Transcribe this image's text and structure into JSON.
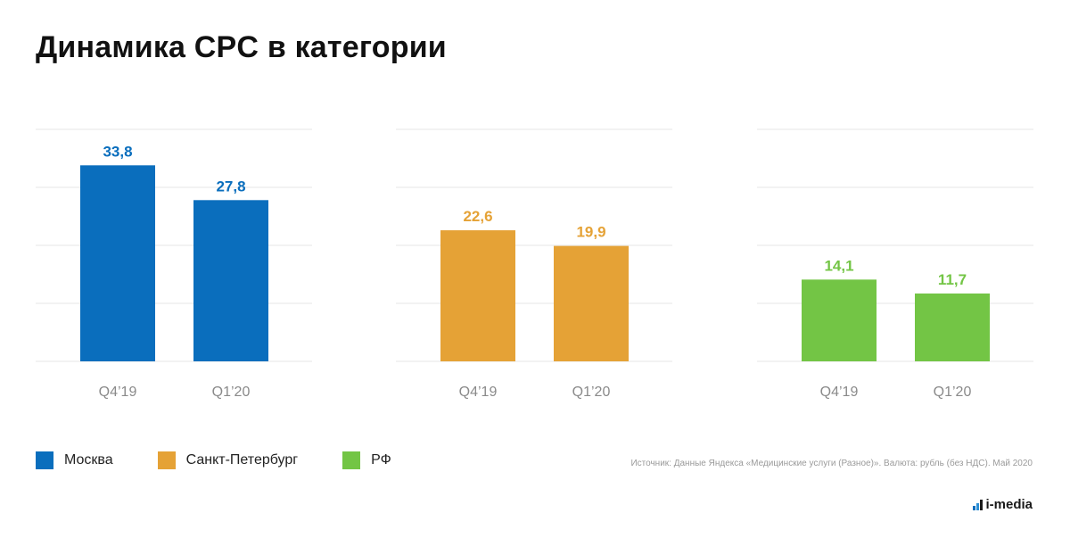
{
  "title": "Динамика CPC в категории",
  "chart_data": [
    {
      "type": "bar",
      "name": "Москва",
      "categories": [
        "Q4’19",
        "Q1’20"
      ],
      "values": [
        33.8,
        27.8
      ],
      "value_labels": [
        "33,8",
        "27,8"
      ],
      "color": "#0a6ebd",
      "ylim": [
        0,
        40
      ],
      "grid": true
    },
    {
      "type": "bar",
      "name": "Санкт-Петербург",
      "categories": [
        "Q4’19",
        "Q1’20"
      ],
      "values": [
        22.6,
        19.9
      ],
      "value_labels": [
        "22,6",
        "19,9"
      ],
      "color": "#e5a236",
      "ylim": [
        0,
        40
      ],
      "grid": true
    },
    {
      "type": "bar",
      "name": "РФ",
      "categories": [
        "Q4’19",
        "Q1’20"
      ],
      "values": [
        14.1,
        11.7
      ],
      "value_labels": [
        "14,1",
        "11,7"
      ],
      "color": "#73c545",
      "ylim": [
        0,
        40
      ],
      "grid": true
    }
  ],
  "legend": {
    "placement": "bottom-left",
    "items": [
      {
        "label": "Москва",
        "color": "#0a6ebd"
      },
      {
        "label": "Санкт-Петербург",
        "color": "#e5a236"
      },
      {
        "label": "РФ",
        "color": "#73c545"
      }
    ]
  },
  "source": "Источник: Данные Яндекса «Медицинские услуги (Разное)». Валюта: рубль (без НДС). Май 2020",
  "logo": {
    "text": "i-media",
    "mark_colors": [
      "#0a6ebd",
      "#2b8fd6",
      "#1a1a1a"
    ]
  }
}
